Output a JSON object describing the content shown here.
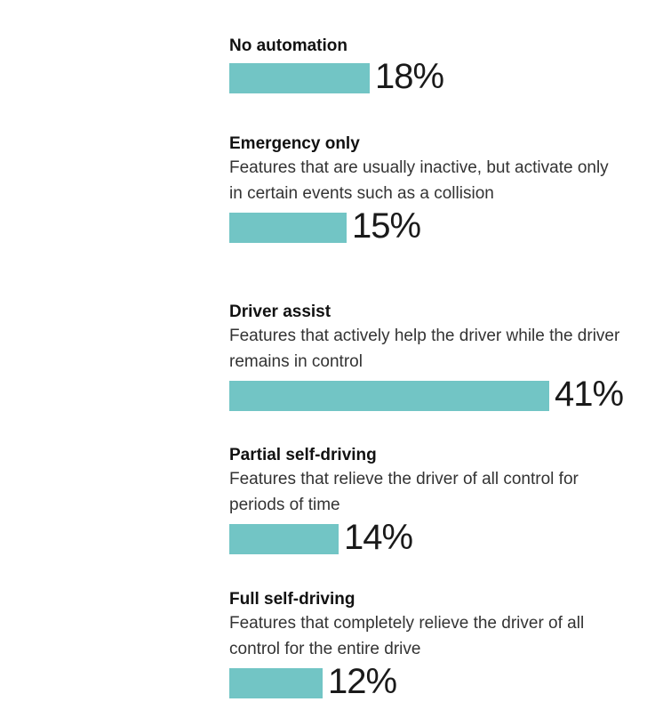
{
  "chart_data": {
    "type": "bar",
    "orientation": "horizontal",
    "title": "",
    "xlabel": "",
    "ylabel": "",
    "value_suffix": "%",
    "bar_color": "#72c5c5",
    "categories": [
      "No automation",
      "Emergency only",
      "Driver assist",
      "Partial self-driving",
      "Full self-driving"
    ],
    "descriptions": [
      "",
      "Features that are usually inactive, but activate only in certain events such as a collision",
      "Features that actively help the driver while the driver remains in control",
      "Features that relieve the driver of all control for periods of time",
      "Features that completely relieve the driver of all control for the entire drive"
    ],
    "values": [
      18,
      15,
      41,
      14,
      12
    ],
    "xlim": [
      0,
      41
    ],
    "grid": false,
    "legend": "none"
  }
}
